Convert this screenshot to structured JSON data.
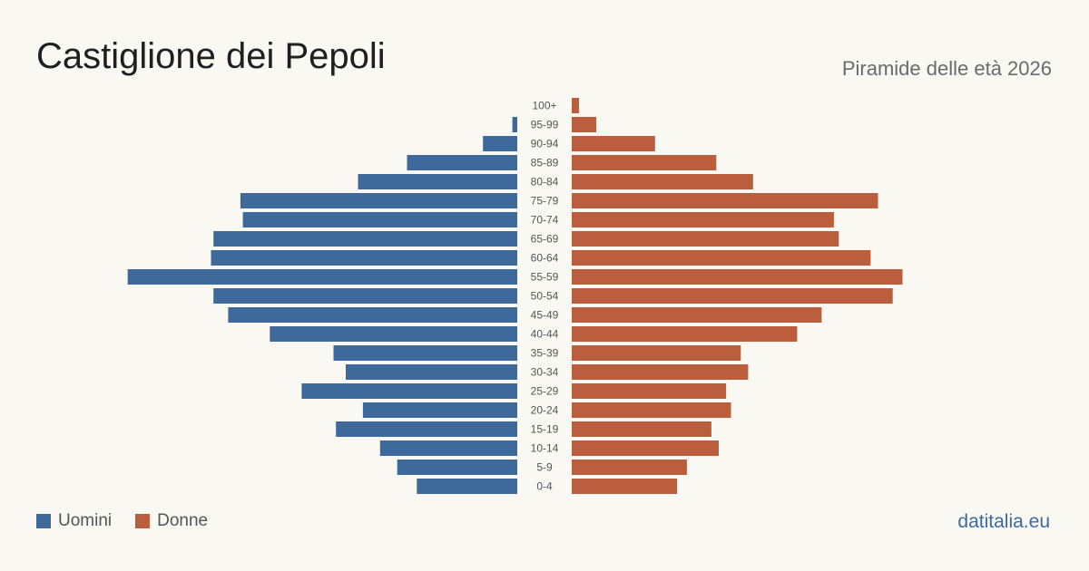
{
  "title": "Castiglione dei Pepoli",
  "subtitle": "Piramide delle età 2026",
  "brand": "datitalia.eu",
  "colors": {
    "men": "#3d6a9a",
    "women": "#bb5e3e"
  },
  "chart_data": {
    "type": "bar",
    "orientation": "horizontal-diverging",
    "categories": [
      "100+",
      "95-99",
      "90-94",
      "85-89",
      "80-84",
      "75-79",
      "70-74",
      "65-69",
      "60-64",
      "55-59",
      "50-54",
      "45-49",
      "40-44",
      "35-39",
      "30-34",
      "25-29",
      "20-24",
      "15-19",
      "10-14",
      "5-9",
      "0-4"
    ],
    "series": [
      {
        "name": "Uomini",
        "values": [
          0,
          2,
          14,
          45,
          65,
          113,
          112,
          124,
          125,
          159,
          124,
          118,
          101,
          75,
          70,
          88,
          63,
          74,
          56,
          49,
          41
        ]
      },
      {
        "name": "Donne",
        "values": [
          3,
          10,
          34,
          59,
          74,
          125,
          107,
          109,
          122,
          135,
          131,
          102,
          92,
          69,
          72,
          63,
          65,
          57,
          60,
          47,
          43
        ]
      }
    ],
    "legend": "bottom-left",
    "grid": false
  }
}
